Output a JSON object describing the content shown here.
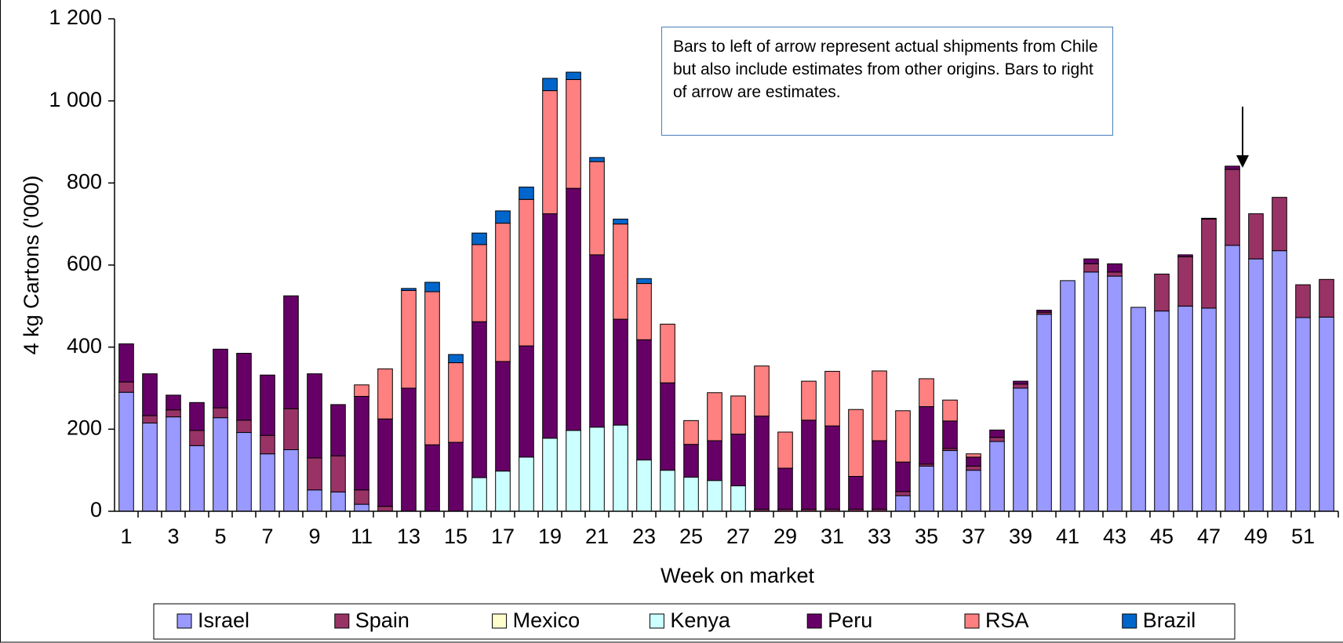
{
  "chart_data": {
    "type": "bar",
    "stacked": true,
    "ylabel": "4 kg Cartons ('000)",
    "xlabel": "Week on market",
    "annotation": "Bars to left of arrow represent actual shipments from Chile but also include estimates from other origins. Bars to right of arrow are estimates.",
    "categories": [
      1,
      null,
      3,
      null,
      5,
      null,
      7,
      null,
      9,
      null,
      11,
      null,
      13,
      null,
      15,
      null,
      17,
      null,
      19,
      null,
      21,
      null,
      23,
      null,
      25,
      null,
      27,
      null,
      29,
      null,
      31,
      null,
      33,
      null,
      35,
      null,
      37,
      null,
      39,
      null,
      41,
      null,
      43,
      null,
      45,
      null,
      47,
      null,
      49,
      null,
      51,
      null
    ],
    "ylim": [
      0,
      1200
    ],
    "yticks": [
      0,
      200,
      400,
      600,
      800,
      {
        "value": 1000,
        "label": "1 000"
      },
      {
        "value": 1200,
        "label": "1 200"
      }
    ],
    "series": [
      {
        "name": "Israel",
        "color": "#9999ff",
        "values": [
          290,
          215,
          230,
          160,
          228,
          192,
          140,
          150,
          52,
          47,
          17,
          0,
          0,
          0,
          0,
          0,
          0,
          0,
          0,
          0,
          0,
          0,
          0,
          0,
          0,
          0,
          0,
          0,
          0,
          0,
          0,
          0,
          0,
          38,
          110,
          148,
          100,
          170,
          300,
          480,
          562,
          583,
          573,
          497,
          488,
          500,
          495,
          648,
          615,
          635,
          472,
          473
        ]
      },
      {
        "name": "Spain",
        "color": "#993366",
        "values": [
          25,
          18,
          17,
          37,
          24,
          30,
          45,
          100,
          78,
          88,
          35,
          12,
          0,
          0,
          0,
          0,
          0,
          0,
          0,
          0,
          0,
          0,
          0,
          0,
          0,
          0,
          0,
          5,
          5,
          5,
          5,
          5,
          5,
          10,
          5,
          5,
          10,
          10,
          10,
          5,
          0,
          20,
          10,
          0,
          90,
          120,
          217,
          185,
          110,
          130,
          80,
          92
        ]
      },
      {
        "name": "Mexico",
        "color": "#ffffcc",
        "values": [
          0,
          0,
          0,
          0,
          0,
          0,
          0,
          0,
          0,
          0,
          0,
          0,
          0,
          0,
          0,
          0,
          0,
          0,
          0,
          0,
          0,
          0,
          0,
          0,
          0,
          0,
          0,
          0,
          0,
          0,
          0,
          0,
          0,
          0,
          0,
          0,
          0,
          0,
          0,
          0,
          0,
          0,
          0,
          0,
          0,
          0,
          0,
          0,
          0,
          0,
          0,
          0
        ]
      },
      {
        "name": "Kenya",
        "color": "#ccffff",
        "values": [
          0,
          0,
          0,
          0,
          0,
          0,
          0,
          0,
          0,
          0,
          0,
          0,
          0,
          0,
          0,
          82,
          98,
          132,
          178,
          197,
          205,
          210,
          125,
          100,
          83,
          75,
          62,
          0,
          0,
          0,
          0,
          0,
          0,
          0,
          0,
          0,
          0,
          0,
          0,
          0,
          0,
          0,
          0,
          0,
          0,
          0,
          0,
          0,
          0,
          0,
          0,
          0
        ]
      },
      {
        "name": "Peru",
        "color": "#660066",
        "values": [
          93,
          102,
          36,
          68,
          143,
          163,
          147,
          275,
          205,
          125,
          228,
          213,
          300,
          162,
          168,
          380,
          267,
          271,
          547,
          590,
          420,
          258,
          293,
          213,
          80,
          97,
          126,
          227,
          100,
          217,
          203,
          80,
          167,
          72,
          140,
          67,
          22,
          18,
          7,
          5,
          0,
          12,
          20,
          0,
          0,
          5,
          2,
          8,
          0,
          0,
          0,
          0
        ]
      },
      {
        "name": "RSA",
        "color": "#ff8080",
        "values": [
          0,
          0,
          0,
          0,
          0,
          0,
          0,
          0,
          0,
          0,
          28,
          122,
          238,
          373,
          194,
          188,
          337,
          357,
          300,
          265,
          227,
          232,
          137,
          143,
          58,
          117,
          93,
          122,
          88,
          95,
          133,
          163,
          170,
          125,
          68,
          51,
          8,
          0,
          0,
          0,
          0,
          0,
          0,
          0,
          0,
          0,
          0,
          0,
          0,
          0,
          0,
          0
        ]
      },
      {
        "name": "Brazil",
        "color": "#0066cc",
        "values": [
          0,
          0,
          0,
          0,
          0,
          0,
          0,
          0,
          0,
          0,
          0,
          0,
          5,
          23,
          20,
          28,
          30,
          30,
          30,
          18,
          10,
          12,
          12,
          0,
          0,
          0,
          0,
          0,
          0,
          0,
          0,
          0,
          0,
          0,
          0,
          0,
          0,
          0,
          0,
          0,
          0,
          0,
          0,
          0,
          0,
          0,
          0,
          0,
          0,
          0,
          0,
          0
        ]
      }
    ]
  }
}
